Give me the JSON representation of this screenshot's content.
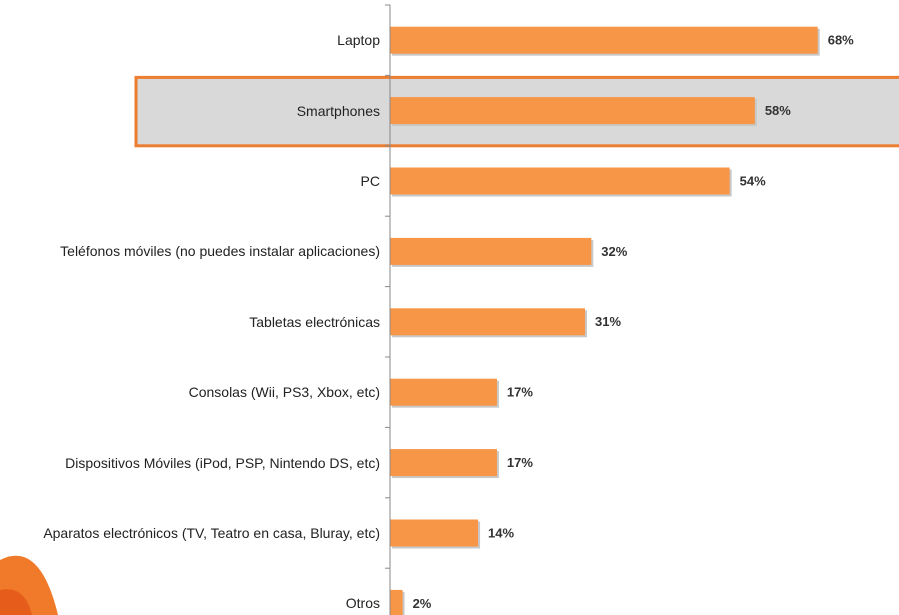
{
  "chart_data": {
    "type": "bar",
    "orientation": "horizontal",
    "categories": [
      "Laptop",
      "Smartphones",
      "PC",
      "Teléfonos móviles (no puedes instalar aplicaciones)",
      "Tabletas electrónicas",
      "Consolas (Wii,  PS3, Xbox, etc)",
      "Dispositivos Móviles (iPod, PSP, Nintendo DS, etc)",
      "Aparatos electrónicos (TV, Teatro en casa, Bluray, etc)",
      "Otros"
    ],
    "values": [
      68,
      58,
      54,
      32,
      31,
      17,
      17,
      14,
      2
    ],
    "value_labels": [
      "68%",
      "58%",
      "54%",
      "32%",
      "31%",
      "17%",
      "17%",
      "14%",
      "2%"
    ],
    "color": "#f79646",
    "highlight_index": 1,
    "highlight_color": "#d9d9d9",
    "highlight_border": "#ed7d31"
  }
}
